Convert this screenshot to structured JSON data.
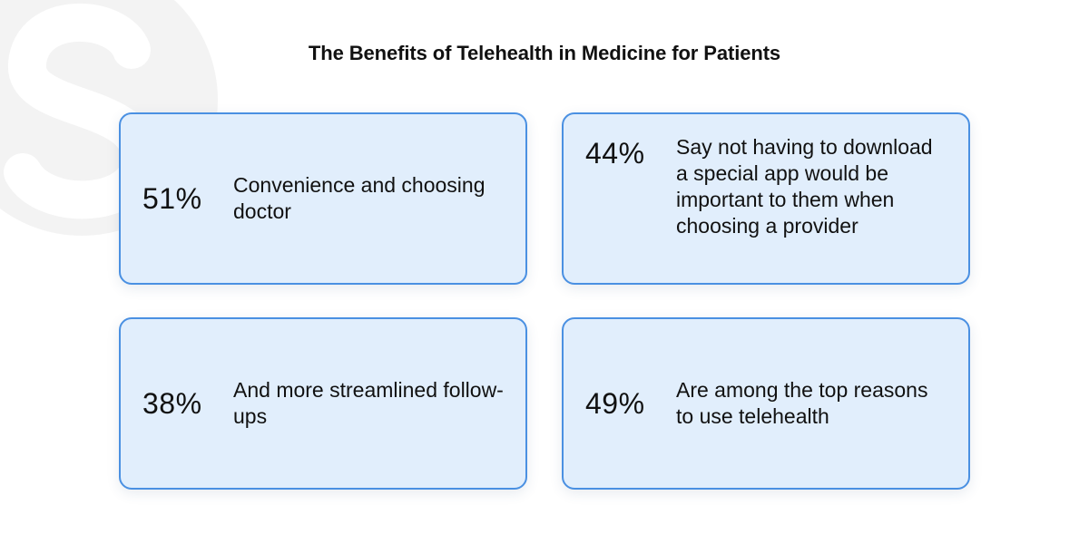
{
  "title": "The Benefits of Telehealth in Medicine for Patients",
  "colors": {
    "card_border": "#4a90e2",
    "card_background": "#e1eefc",
    "watermark": "#f2f2f2"
  },
  "stats": [
    {
      "value": "51%",
      "description": "Convenience and choosing doctor"
    },
    {
      "value": "44%",
      "description": "Say not having to download a special app would be important to them when choosing a provider"
    },
    {
      "value": "38%",
      "description": "And more streamlined follow-ups"
    },
    {
      "value": "49%",
      "description": "Are among the top reasons to use telehealth"
    }
  ]
}
